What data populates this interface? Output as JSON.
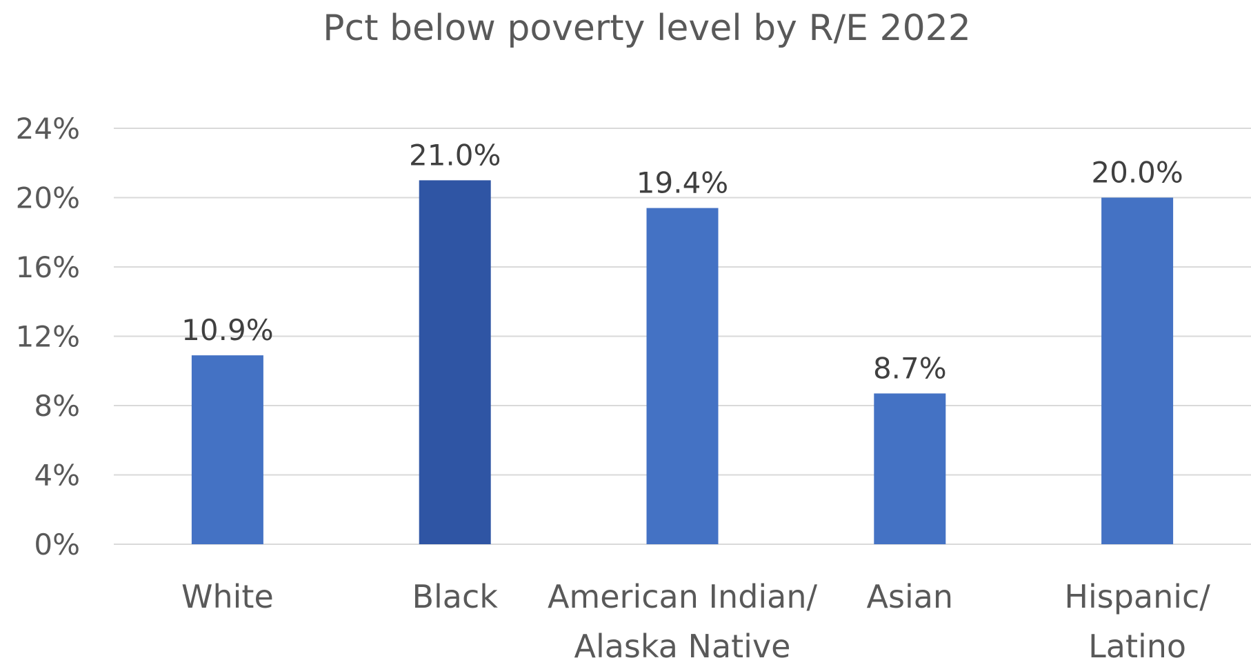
{
  "chart_data": {
    "type": "bar",
    "title": "Pct below poverty level by R/E 2022",
    "xlabel": "",
    "ylabel": "",
    "categories": [
      [
        "White"
      ],
      [
        "Black"
      ],
      [
        "American Indian/",
        "Alaska Native"
      ],
      [
        "Asian"
      ],
      [
        "Hispanic/",
        "Latino"
      ]
    ],
    "values": [
      10.9,
      21.0,
      19.4,
      8.7,
      20.0
    ],
    "data_labels": [
      "10.9%",
      "21.0%",
      "19.4%",
      "8.7%",
      "20.0%"
    ],
    "yticks": [
      0,
      4,
      8,
      12,
      16,
      20,
      24
    ],
    "ytick_labels": [
      "0%",
      "4%",
      "8%",
      "12%",
      "16%",
      "20%",
      "24%"
    ],
    "ylim": [
      0,
      24
    ],
    "grid": true,
    "legend": "none",
    "colors": [
      "#4472c4",
      "#2f55a4",
      "#4472c4",
      "#4472c4",
      "#4472c4"
    ]
  }
}
